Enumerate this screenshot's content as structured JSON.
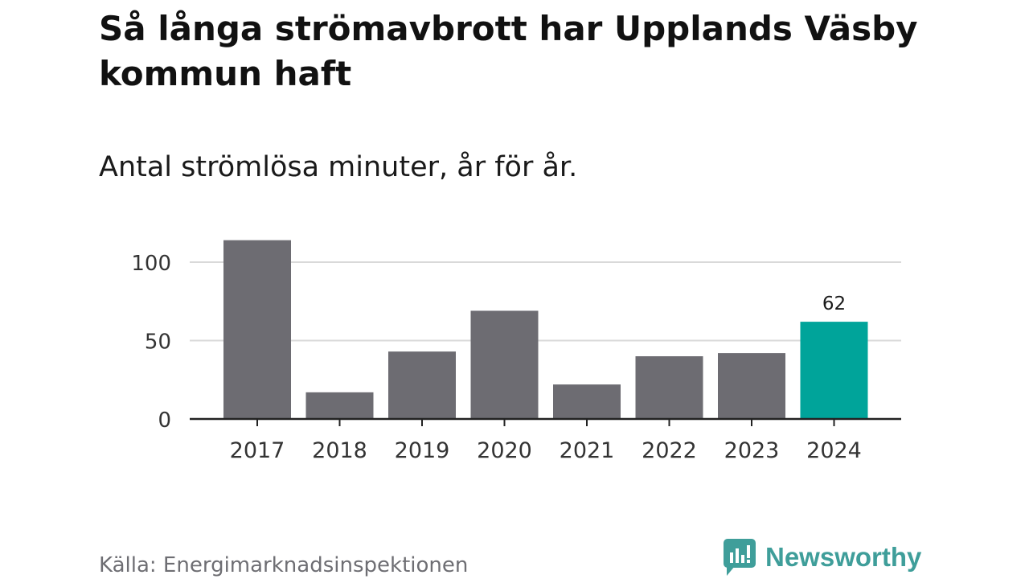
{
  "chart_data": {
    "type": "bar",
    "title": "Så långa strömavbrott har Upplands Väsby kommun haft",
    "subtitle": "Antal strömlösa minuter, år för år.",
    "categories": [
      "2017",
      "2018",
      "2019",
      "2020",
      "2021",
      "2022",
      "2023",
      "2024"
    ],
    "values": [
      114,
      17,
      43,
      69,
      22,
      40,
      42,
      62
    ],
    "highlight_index": 7,
    "highlight_label": "62",
    "yticks": [
      0,
      50,
      100
    ],
    "ylim": [
      0,
      114
    ],
    "grid": true,
    "xlabel": "",
    "ylabel": "",
    "bar_color": "#6d6c72",
    "highlight_color": "#00a49a",
    "grid_color": "#d9d9d9",
    "axis_color": "#222222"
  },
  "footer": {
    "source": "Källa: Energimarknadsinspektionen",
    "brand": "Newsworthy",
    "brand_color": "#3f9e9a"
  }
}
